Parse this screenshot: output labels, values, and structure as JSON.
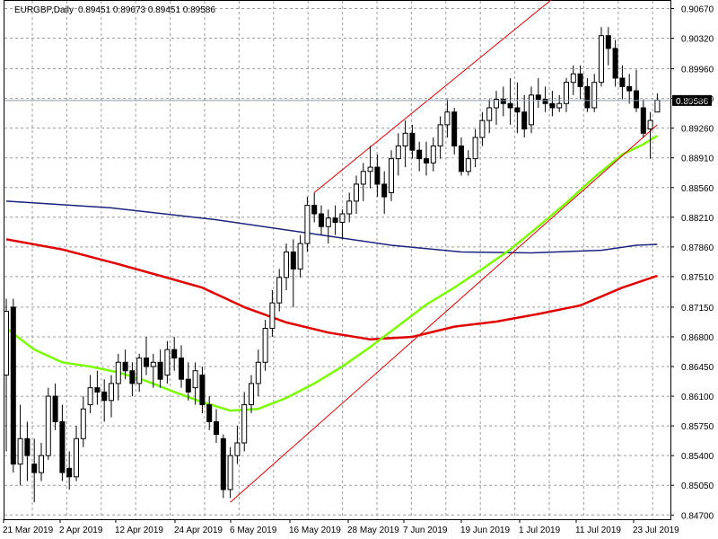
{
  "header": {
    "symbol": "EURGBP,Daily",
    "ohlc": "0.89451 0.89673 0.89451 0.89586"
  },
  "chart_data": {
    "type": "candlestick",
    "symbol": "EURGBP",
    "timeframe": "Daily",
    "current_price": 0.89586,
    "current_price_label": "0.89586",
    "ylim": [
      0.8465,
      0.9076
    ],
    "y_ticks": [
      "0.90670",
      "0.90320",
      "0.89960",
      "0.89610",
      "0.89260",
      "0.88910",
      "0.88560",
      "0.88210",
      "0.87860",
      "0.87510",
      "0.87150",
      "0.86800",
      "0.86450",
      "0.86100",
      "0.85750",
      "0.85400",
      "0.85050",
      "0.84700"
    ],
    "x_ticks": [
      "21 Mar 2019",
      "2 Apr 2019",
      "12 Apr 2019",
      "24 Apr 2019",
      "6 May 2019",
      "16 May 2019",
      "28 May 2019",
      "7 Jun 2019",
      "19 Jun 2019",
      "1 Jul 2019",
      "11 Jul 2019",
      "23 Jul 2019"
    ],
    "candles": [
      {
        "o": 0.8635,
        "h": 0.8725,
        "l": 0.8545,
        "c": 0.871
      },
      {
        "o": 0.8715,
        "h": 0.8725,
        "l": 0.852,
        "c": 0.853
      },
      {
        "o": 0.853,
        "h": 0.86,
        "l": 0.8505,
        "c": 0.856
      },
      {
        "o": 0.856,
        "h": 0.858,
        "l": 0.851,
        "c": 0.854
      },
      {
        "o": 0.853,
        "h": 0.856,
        "l": 0.8485,
        "c": 0.852
      },
      {
        "o": 0.852,
        "h": 0.8555,
        "l": 0.851,
        "c": 0.854
      },
      {
        "o": 0.854,
        "h": 0.862,
        "l": 0.8535,
        "c": 0.861
      },
      {
        "o": 0.861,
        "h": 0.8625,
        "l": 0.857,
        "c": 0.858
      },
      {
        "o": 0.858,
        "h": 0.86,
        "l": 0.851,
        "c": 0.852
      },
      {
        "o": 0.8525,
        "h": 0.8545,
        "l": 0.85,
        "c": 0.8515
      },
      {
        "o": 0.8515,
        "h": 0.8575,
        "l": 0.851,
        "c": 0.856
      },
      {
        "o": 0.856,
        "h": 0.861,
        "l": 0.855,
        "c": 0.8595
      },
      {
        "o": 0.86,
        "h": 0.8635,
        "l": 0.859,
        "c": 0.862
      },
      {
        "o": 0.862,
        "h": 0.864,
        "l": 0.86,
        "c": 0.8615
      },
      {
        "o": 0.8615,
        "h": 0.863,
        "l": 0.858,
        "c": 0.8605
      },
      {
        "o": 0.8605,
        "h": 0.8635,
        "l": 0.8585,
        "c": 0.8625
      },
      {
        "o": 0.8625,
        "h": 0.866,
        "l": 0.8605,
        "c": 0.865
      },
      {
        "o": 0.865,
        "h": 0.8665,
        "l": 0.863,
        "c": 0.864
      },
      {
        "o": 0.864,
        "h": 0.865,
        "l": 0.861,
        "c": 0.8625
      },
      {
        "o": 0.8625,
        "h": 0.866,
        "l": 0.8615,
        "c": 0.8655
      },
      {
        "o": 0.8655,
        "h": 0.868,
        "l": 0.8635,
        "c": 0.8645
      },
      {
        "o": 0.8645,
        "h": 0.866,
        "l": 0.862,
        "c": 0.865
      },
      {
        "o": 0.865,
        "h": 0.8665,
        "l": 0.862,
        "c": 0.863
      },
      {
        "o": 0.8635,
        "h": 0.8675,
        "l": 0.8625,
        "c": 0.8665
      },
      {
        "o": 0.8665,
        "h": 0.868,
        "l": 0.864,
        "c": 0.8655
      },
      {
        "o": 0.8655,
        "h": 0.867,
        "l": 0.862,
        "c": 0.863
      },
      {
        "o": 0.863,
        "h": 0.865,
        "l": 0.8605,
        "c": 0.8615
      },
      {
        "o": 0.862,
        "h": 0.865,
        "l": 0.86,
        "c": 0.864
      },
      {
        "o": 0.8635,
        "h": 0.8645,
        "l": 0.859,
        "c": 0.86
      },
      {
        "o": 0.86,
        "h": 0.861,
        "l": 0.857,
        "c": 0.858
      },
      {
        "o": 0.858,
        "h": 0.8595,
        "l": 0.8555,
        "c": 0.8565
      },
      {
        "o": 0.856,
        "h": 0.8565,
        "l": 0.849,
        "c": 0.85
      },
      {
        "o": 0.85,
        "h": 0.855,
        "l": 0.849,
        "c": 0.854
      },
      {
        "o": 0.854,
        "h": 0.8575,
        "l": 0.853,
        "c": 0.8555
      },
      {
        "o": 0.8555,
        "h": 0.8615,
        "l": 0.8545,
        "c": 0.86
      },
      {
        "o": 0.86,
        "h": 0.8635,
        "l": 0.859,
        "c": 0.8625
      },
      {
        "o": 0.8625,
        "h": 0.8665,
        "l": 0.861,
        "c": 0.865
      },
      {
        "o": 0.865,
        "h": 0.87,
        "l": 0.864,
        "c": 0.869
      },
      {
        "o": 0.869,
        "h": 0.8735,
        "l": 0.868,
        "c": 0.872
      },
      {
        "o": 0.872,
        "h": 0.876,
        "l": 0.871,
        "c": 0.875
      },
      {
        "o": 0.875,
        "h": 0.879,
        "l": 0.8735,
        "c": 0.878
      },
      {
        "o": 0.878,
        "h": 0.8795,
        "l": 0.8715,
        "c": 0.876
      },
      {
        "o": 0.876,
        "h": 0.88,
        "l": 0.875,
        "c": 0.879
      },
      {
        "o": 0.879,
        "h": 0.8845,
        "l": 0.878,
        "c": 0.8835
      },
      {
        "o": 0.8835,
        "h": 0.885,
        "l": 0.8815,
        "c": 0.8825
      },
      {
        "o": 0.8825,
        "h": 0.8835,
        "l": 0.88,
        "c": 0.881
      },
      {
        "o": 0.881,
        "h": 0.883,
        "l": 0.879,
        "c": 0.882
      },
      {
        "o": 0.882,
        "h": 0.8835,
        "l": 0.88,
        "c": 0.8815
      },
      {
        "o": 0.8815,
        "h": 0.883,
        "l": 0.8795,
        "c": 0.8825
      },
      {
        "o": 0.8825,
        "h": 0.885,
        "l": 0.8815,
        "c": 0.884
      },
      {
        "o": 0.884,
        "h": 0.887,
        "l": 0.8825,
        "c": 0.886
      },
      {
        "o": 0.886,
        "h": 0.8885,
        "l": 0.884,
        "c": 0.8875
      },
      {
        "o": 0.8875,
        "h": 0.8905,
        "l": 0.8855,
        "c": 0.888
      },
      {
        "o": 0.888,
        "h": 0.8895,
        "l": 0.8845,
        "c": 0.886
      },
      {
        "o": 0.886,
        "h": 0.8875,
        "l": 0.8825,
        "c": 0.8845
      },
      {
        "o": 0.885,
        "h": 0.89,
        "l": 0.884,
        "c": 0.889
      },
      {
        "o": 0.889,
        "h": 0.892,
        "l": 0.887,
        "c": 0.8905
      },
      {
        "o": 0.8905,
        "h": 0.8935,
        "l": 0.888,
        "c": 0.892
      },
      {
        "o": 0.892,
        "h": 0.893,
        "l": 0.889,
        "c": 0.89
      },
      {
        "o": 0.89,
        "h": 0.891,
        "l": 0.8875,
        "c": 0.889
      },
      {
        "o": 0.889,
        "h": 0.891,
        "l": 0.887,
        "c": 0.8885
      },
      {
        "o": 0.8885,
        "h": 0.8915,
        "l": 0.8875,
        "c": 0.8905
      },
      {
        "o": 0.8905,
        "h": 0.894,
        "l": 0.889,
        "c": 0.893
      },
      {
        "o": 0.893,
        "h": 0.896,
        "l": 0.8915,
        "c": 0.8945
      },
      {
        "o": 0.8945,
        "h": 0.895,
        "l": 0.8895,
        "c": 0.8905
      },
      {
        "o": 0.8905,
        "h": 0.8915,
        "l": 0.887,
        "c": 0.8875
      },
      {
        "o": 0.8875,
        "h": 0.89,
        "l": 0.887,
        "c": 0.889
      },
      {
        "o": 0.889,
        "h": 0.8925,
        "l": 0.888,
        "c": 0.8915
      },
      {
        "o": 0.8915,
        "h": 0.8945,
        "l": 0.8905,
        "c": 0.8935
      },
      {
        "o": 0.8935,
        "h": 0.896,
        "l": 0.892,
        "c": 0.895
      },
      {
        "o": 0.895,
        "h": 0.897,
        "l": 0.893,
        "c": 0.896
      },
      {
        "o": 0.896,
        "h": 0.8975,
        "l": 0.894,
        "c": 0.8955
      },
      {
        "o": 0.8955,
        "h": 0.8985,
        "l": 0.893,
        "c": 0.895
      },
      {
        "o": 0.895,
        "h": 0.898,
        "l": 0.892,
        "c": 0.8945
      },
      {
        "o": 0.8945,
        "h": 0.8965,
        "l": 0.8915,
        "c": 0.8925
      },
      {
        "o": 0.893,
        "h": 0.8975,
        "l": 0.892,
        "c": 0.8965
      },
      {
        "o": 0.8965,
        "h": 0.8985,
        "l": 0.895,
        "c": 0.896
      },
      {
        "o": 0.896,
        "h": 0.8975,
        "l": 0.8945,
        "c": 0.8955
      },
      {
        "o": 0.8955,
        "h": 0.897,
        "l": 0.894,
        "c": 0.895
      },
      {
        "o": 0.895,
        "h": 0.8965,
        "l": 0.8945,
        "c": 0.8955
      },
      {
        "o": 0.8955,
        "h": 0.8985,
        "l": 0.8945,
        "c": 0.898
      },
      {
        "o": 0.898,
        "h": 0.9,
        "l": 0.8965,
        "c": 0.899
      },
      {
        "o": 0.899,
        "h": 0.9,
        "l": 0.896,
        "c": 0.8975
      },
      {
        "o": 0.8975,
        "h": 0.8985,
        "l": 0.8945,
        "c": 0.895
      },
      {
        "o": 0.895,
        "h": 0.899,
        "l": 0.8945,
        "c": 0.898
      },
      {
        "o": 0.898,
        "h": 0.9045,
        "l": 0.8975,
        "c": 0.9035
      },
      {
        "o": 0.9035,
        "h": 0.9045,
        "l": 0.9,
        "c": 0.902
      },
      {
        "o": 0.902,
        "h": 0.903,
        "l": 0.8975,
        "c": 0.8985
      },
      {
        "o": 0.8985,
        "h": 0.9,
        "l": 0.896,
        "c": 0.8975
      },
      {
        "o": 0.8975,
        "h": 0.899,
        "l": 0.8955,
        "c": 0.897
      },
      {
        "o": 0.897,
        "h": 0.8995,
        "l": 0.8945,
        "c": 0.895
      },
      {
        "o": 0.895,
        "h": 0.896,
        "l": 0.8915,
        "c": 0.892
      },
      {
        "o": 0.8925,
        "h": 0.8945,
        "l": 0.889,
        "c": 0.8935
      },
      {
        "o": 0.8945,
        "h": 0.8967,
        "l": 0.8945,
        "c": 0.8959
      }
    ],
    "moving_averages": [
      {
        "color": "#1a237e",
        "points": [
          [
            0,
            0.884
          ],
          [
            15,
            0.8832
          ],
          [
            30,
            0.8818
          ],
          [
            45,
            0.88
          ],
          [
            55,
            0.8788
          ],
          [
            65,
            0.878
          ],
          [
            75,
            0.8779
          ],
          [
            85,
            0.8782
          ],
          [
            90,
            0.8788
          ],
          [
            93,
            0.8789
          ]
        ]
      },
      {
        "color": "#e00000",
        "points": [
          [
            0,
            0.8795
          ],
          [
            8,
            0.8783
          ],
          [
            15,
            0.8768
          ],
          [
            22,
            0.8752
          ],
          [
            28,
            0.8738
          ],
          [
            34,
            0.8715
          ],
          [
            40,
            0.8697
          ],
          [
            46,
            0.8685
          ],
          [
            52,
            0.8677
          ],
          [
            58,
            0.868
          ],
          [
            64,
            0.8692
          ],
          [
            70,
            0.8698
          ],
          [
            76,
            0.8707
          ],
          [
            82,
            0.8717
          ],
          [
            88,
            0.8738
          ],
          [
            93,
            0.8752
          ]
        ]
      },
      {
        "color": "#7cfc00",
        "points": [
          [
            0,
            0.869
          ],
          [
            4,
            0.8665
          ],
          [
            8,
            0.865
          ],
          [
            12,
            0.8645
          ],
          [
            16,
            0.8638
          ],
          [
            20,
            0.8628
          ],
          [
            24,
            0.8615
          ],
          [
            28,
            0.8603
          ],
          [
            32,
            0.8593
          ],
          [
            36,
            0.8595
          ],
          [
            40,
            0.8608
          ],
          [
            44,
            0.8625
          ],
          [
            48,
            0.8645
          ],
          [
            52,
            0.8668
          ],
          [
            56,
            0.8693
          ],
          [
            60,
            0.8718
          ],
          [
            64,
            0.8738
          ],
          [
            68,
            0.876
          ],
          [
            72,
            0.8783
          ],
          [
            76,
            0.881
          ],
          [
            80,
            0.8838
          ],
          [
            84,
            0.8868
          ],
          [
            88,
            0.8895
          ],
          [
            91,
            0.8907
          ],
          [
            93,
            0.8917
          ]
        ]
      }
    ],
    "channel": {
      "color": "#e00000",
      "lower": [
        [
          32,
          0.8485
        ],
        [
          93,
          0.893
        ]
      ],
      "upper": [
        [
          44,
          0.885
        ],
        [
          79,
          0.9085
        ]
      ]
    },
    "grid": true
  }
}
